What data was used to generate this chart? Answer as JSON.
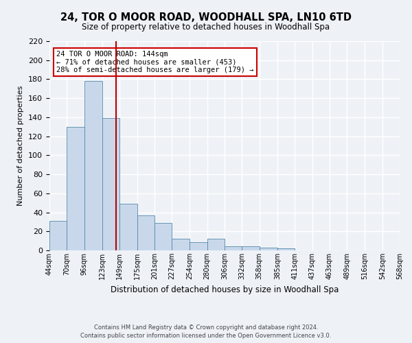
{
  "title": "24, TOR O MOOR ROAD, WOODHALL SPA, LN10 6TD",
  "subtitle": "Size of property relative to detached houses in Woodhall Spa",
  "xlabel": "Distribution of detached houses by size in Woodhall Spa",
  "ylabel": "Number of detached properties",
  "bar_heights": [
    31,
    130,
    178,
    139,
    49,
    37,
    29,
    12,
    9,
    12,
    4,
    4,
    3,
    2,
    0,
    0,
    0,
    0,
    0,
    0
  ],
  "bar_labels": [
    "44sqm",
    "70sqm",
    "96sqm",
    "123sqm",
    "149sqm",
    "175sqm",
    "201sqm",
    "227sqm",
    "254sqm",
    "280sqm",
    "306sqm",
    "332sqm",
    "358sqm",
    "385sqm",
    "411sqm",
    "437sqm",
    "463sqm",
    "489sqm",
    "516sqm",
    "542sqm",
    "568sqm"
  ],
  "bin_edges": [
    44,
    70,
    96,
    123,
    149,
    175,
    201,
    227,
    254,
    280,
    306,
    332,
    358,
    385,
    411,
    437,
    463,
    489,
    516,
    542,
    568
  ],
  "property_size": 144,
  "bar_color": "#c8d8ea",
  "bar_edge_color": "#5588aa",
  "vline_color": "#bb0000",
  "ylim": [
    0,
    220
  ],
  "yticks": [
    0,
    20,
    40,
    60,
    80,
    100,
    120,
    140,
    160,
    180,
    200,
    220
  ],
  "annotation_title": "24 TOR O MOOR ROAD: 144sqm",
  "annotation_line1": "← 71% of detached houses are smaller (453)",
  "annotation_line2": "28% of semi-detached houses are larger (179) →",
  "annotation_box_facecolor": "#ffffff",
  "annotation_box_edgecolor": "#cc0000",
  "background_color": "#eef2f7",
  "grid_color": "#ffffff",
  "footer1": "Contains HM Land Registry data © Crown copyright and database right 2024.",
  "footer2": "Contains public sector information licensed under the Open Government Licence v3.0."
}
